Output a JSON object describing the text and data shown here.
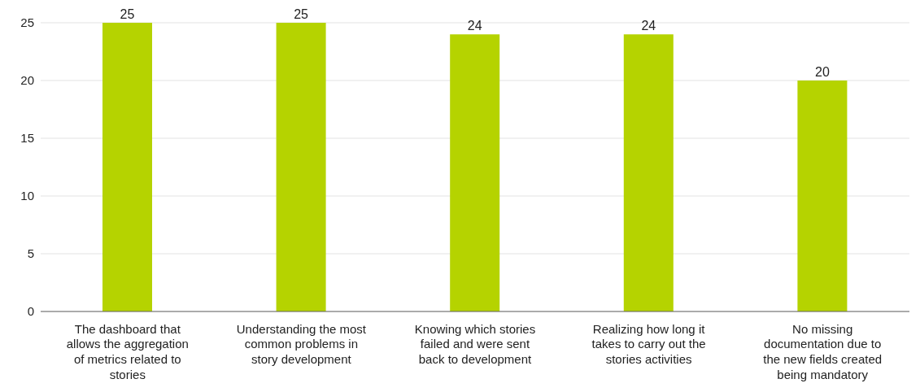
{
  "chart_data": {
    "type": "bar",
    "categories": [
      "The dashboard that allows the aggregation of metrics related to stories",
      "Understanding the most common problems in story development",
      "Knowing which stories failed and were sent back to development",
      "Realizing how long it takes to carry out the stories activities",
      "No missing documentation due to the new fields created being mandatory"
    ],
    "values": [
      25,
      25,
      24,
      24,
      20
    ],
    "color": "#b5d300",
    "ylim": [
      0,
      25
    ],
    "yticks": [
      0,
      5,
      10,
      15,
      20,
      25
    ],
    "grid": "y",
    "data_labels": true
  }
}
